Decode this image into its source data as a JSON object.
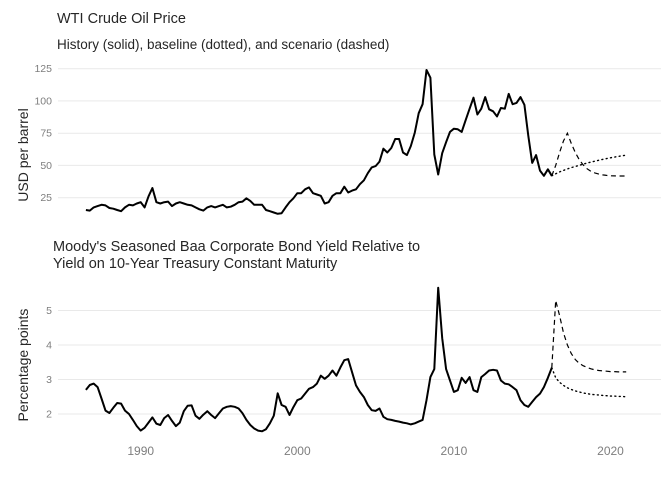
{
  "colors": {
    "background": "#ffffff",
    "line": "#000000",
    "gridline": "#e9e9e9",
    "tick_label": "#7e7e7e",
    "title_text": "#262626"
  },
  "chart_data": [
    {
      "type": "line",
      "title": "WTI Crude Oil Price",
      "subtitle": "History (solid), baseline (dotted), and scenario (dashed)",
      "xlabel": "",
      "ylabel": "USD per barrel",
      "x_unit": "year",
      "xlim": [
        1986,
        2021.5
      ],
      "ylim": [
        10,
        132
      ],
      "x_ticks": [
        1990,
        2000,
        2010,
        2020
      ],
      "show_x_tick_labels": false,
      "y_ticks": [
        25,
        50,
        75,
        100,
        125
      ],
      "grid": "horizontal-major-only",
      "legend": "none (line styles described in subtitle)",
      "series": [
        {
          "name": "History",
          "style": "solid",
          "x_start": 1986.5,
          "x_step": 0.25,
          "values": [
            15.5,
            15.0,
            17.5,
            18.5,
            19.5,
            19.0,
            17.0,
            16.5,
            15.5,
            14.5,
            17.5,
            19.5,
            19.0,
            20.5,
            21.5,
            17.5,
            26.0,
            32.5,
            21.5,
            20.5,
            21.5,
            22.0,
            18.5,
            20.5,
            21.5,
            20.5,
            19.5,
            19.0,
            17.5,
            16.0,
            15.0,
            17.5,
            18.5,
            17.5,
            18.5,
            19.5,
            17.5,
            18.0,
            19.5,
            21.5,
            22.0,
            24.5,
            22.5,
            19.5,
            19.5,
            19.5,
            15.5,
            14.5,
            13.5,
            12.5,
            13.0,
            17.5,
            21.5,
            24.5,
            28.5,
            28.5,
            31.5,
            33.0,
            28.5,
            27.5,
            26.5,
            20.5,
            21.5,
            26.5,
            28.5,
            28.5,
            33.5,
            29.0,
            30.5,
            31.5,
            35.5,
            38.5,
            44.0,
            48.5,
            49.5,
            53.0,
            63.0,
            60.0,
            63.5,
            70.5,
            70.5,
            60.0,
            58.0,
            65.0,
            75.5,
            90.5,
            97.5,
            124.0,
            118.0,
            58.5,
            43.0,
            59.5,
            68.0,
            76.0,
            78.5,
            78.0,
            76.0,
            85.0,
            94.0,
            102.5,
            89.5,
            94.0,
            103.0,
            93.5,
            92.0,
            88.0,
            94.5,
            94.0,
            105.5,
            97.5,
            98.5,
            103.0,
            97.0,
            73.0,
            52.0,
            58.0,
            46.0,
            42.0,
            47.0,
            42.0
          ]
        },
        {
          "name": "Baseline",
          "style": "dotted",
          "x_start": 2016.25,
          "x_step": 0.25,
          "values": [
            42,
            43.5,
            45,
            46.2,
            47.3,
            48.3,
            49.2,
            50.1,
            51,
            51.8,
            52.6,
            53.3,
            54,
            54.7,
            55.3,
            55.9,
            56.5,
            57,
            57.5,
            58
          ]
        },
        {
          "name": "Scenario",
          "style": "dashed",
          "x_start": 2016.25,
          "x_step": 0.25,
          "values": [
            42,
            50,
            60,
            69,
            75,
            67,
            60,
            54.5,
            50.5,
            47.5,
            45.5,
            44.2,
            43.3,
            42.7,
            42.3,
            42,
            41.9,
            41.8,
            41.8,
            41.8
          ]
        }
      ]
    },
    {
      "type": "line",
      "title": "Moody's Seasoned Baa Corporate Bond Yield Relative to Yield on 10-Year Treasury Constant Maturity",
      "title_wrap": [
        "Moody's Seasoned Baa Corporate Bond Yield Relative to",
        "Yield on 10-Year Treasury Constant Maturity"
      ],
      "subtitle": "",
      "xlabel": "",
      "ylabel": "Percentage points",
      "x_unit": "year",
      "xlim": [
        1986,
        2021.5
      ],
      "ylim": [
        1.3,
        5.9
      ],
      "x_ticks": [
        1990,
        2000,
        2010,
        2020
      ],
      "show_x_tick_labels": true,
      "y_ticks": [
        2,
        3,
        4,
        5
      ],
      "grid": "horizontal-major-only",
      "legend": "none (line styles described in chart 1 subtitle)",
      "series": [
        {
          "name": "History",
          "style": "solid",
          "x_start": 1986.5,
          "x_step": 0.25,
          "values": [
            2.7,
            2.84,
            2.88,
            2.78,
            2.45,
            2.1,
            2.03,
            2.18,
            2.32,
            2.3,
            2.1,
            2.0,
            1.83,
            1.65,
            1.52,
            1.6,
            1.75,
            1.9,
            1.72,
            1.68,
            1.88,
            1.97,
            1.8,
            1.65,
            1.75,
            2.08,
            2.24,
            2.25,
            1.95,
            1.86,
            1.98,
            2.08,
            1.97,
            1.88,
            2.02,
            2.16,
            2.21,
            2.23,
            2.21,
            2.16,
            2.02,
            1.83,
            1.68,
            1.58,
            1.52,
            1.5,
            1.56,
            1.73,
            1.95,
            2.6,
            2.26,
            2.21,
            1.97,
            2.2,
            2.4,
            2.45,
            2.59,
            2.73,
            2.78,
            2.88,
            3.11,
            3.02,
            3.11,
            3.26,
            3.11,
            3.35,
            3.56,
            3.59,
            3.21,
            2.83,
            2.64,
            2.49,
            2.26,
            2.11,
            2.09,
            2.16,
            1.92,
            1.85,
            1.83,
            1.8,
            1.78,
            1.75,
            1.73,
            1.7,
            1.73,
            1.78,
            1.83,
            2.4,
            3.07,
            3.3,
            5.66,
            4.2,
            3.3,
            2.97,
            2.64,
            2.69,
            3.05,
            2.9,
            3.07,
            2.69,
            2.64,
            3.07,
            3.16,
            3.26,
            3.28,
            3.26,
            2.97,
            2.88,
            2.86,
            2.78,
            2.69,
            2.4,
            2.26,
            2.21,
            2.35,
            2.49,
            2.59,
            2.78,
            3.05,
            3.34
          ]
        },
        {
          "name": "Baseline",
          "style": "dotted",
          "x_start": 2016.25,
          "x_step": 0.25,
          "values": [
            3.34,
            3.05,
            2.92,
            2.83,
            2.76,
            2.71,
            2.67,
            2.64,
            2.61,
            2.59,
            2.57,
            2.56,
            2.55,
            2.54,
            2.53,
            2.52,
            2.52,
            2.51,
            2.51,
            2.5
          ]
        },
        {
          "name": "Scenario",
          "style": "dashed",
          "x_start": 2016.25,
          "x_step": 0.25,
          "values": [
            3.34,
            5.29,
            4.85,
            4.35,
            4.0,
            3.75,
            3.58,
            3.47,
            3.4,
            3.35,
            3.31,
            3.28,
            3.26,
            3.25,
            3.24,
            3.23,
            3.23,
            3.22,
            3.22,
            3.22
          ]
        }
      ]
    }
  ]
}
